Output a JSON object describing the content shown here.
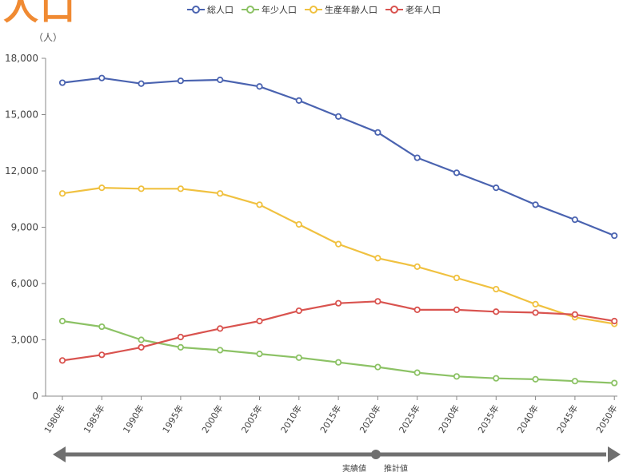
{
  "heading_fragment": "人口",
  "colors": {
    "total": "#4a63b0",
    "youth": "#8cc265",
    "working": "#f0c140",
    "elderly": "#d9534f",
    "axis": "#888888",
    "grid": "#e6e6e6",
    "arrow": "#707070",
    "heading": "#f08a32"
  },
  "chart_data": {
    "type": "line",
    "unit_label": "（人）",
    "ylim": [
      0,
      18000
    ],
    "yticks": [
      "0",
      "3,000",
      "6,000",
      "9,000",
      "12,000",
      "15,000",
      "18,000"
    ],
    "ytick_values": [
      0,
      3000,
      6000,
      9000,
      12000,
      15000,
      18000
    ],
    "categories": [
      "1980年",
      "1985年",
      "1990年",
      "1995年",
      "2000年",
      "2005年",
      "2010年",
      "2015年",
      "2020年",
      "2025年",
      "2030年",
      "2035年",
      "2040年",
      "2045年",
      "2050年"
    ],
    "legend_position": "top",
    "grid": false,
    "series": [
      {
        "key": "total",
        "name": "総人口",
        "values": [
          16700,
          16950,
          16650,
          16800,
          16850,
          16500,
          15750,
          14900,
          14050,
          12700,
          11900,
          11100,
          10200,
          9400,
          8550
        ]
      },
      {
        "key": "youth",
        "name": "年少人口",
        "values": [
          4000,
          3700,
          3000,
          2600,
          2450,
          2250,
          2050,
          1800,
          1550,
          1250,
          1050,
          950,
          900,
          800,
          700
        ]
      },
      {
        "key": "working",
        "name": "生産年齢人口",
        "values": [
          10800,
          11100,
          11050,
          11050,
          10800,
          10200,
          9150,
          8100,
          7350,
          6900,
          6300,
          5700,
          4900,
          4200,
          3850
        ]
      },
      {
        "key": "elderly",
        "name": "老年人口",
        "values": [
          1900,
          2200,
          2600,
          3150,
          3600,
          4000,
          4550,
          4950,
          5050,
          4600,
          4600,
          4500,
          4450,
          4350,
          4000
        ]
      }
    ],
    "period_labels": {
      "actual": "実績値",
      "projected": "推計値"
    }
  }
}
